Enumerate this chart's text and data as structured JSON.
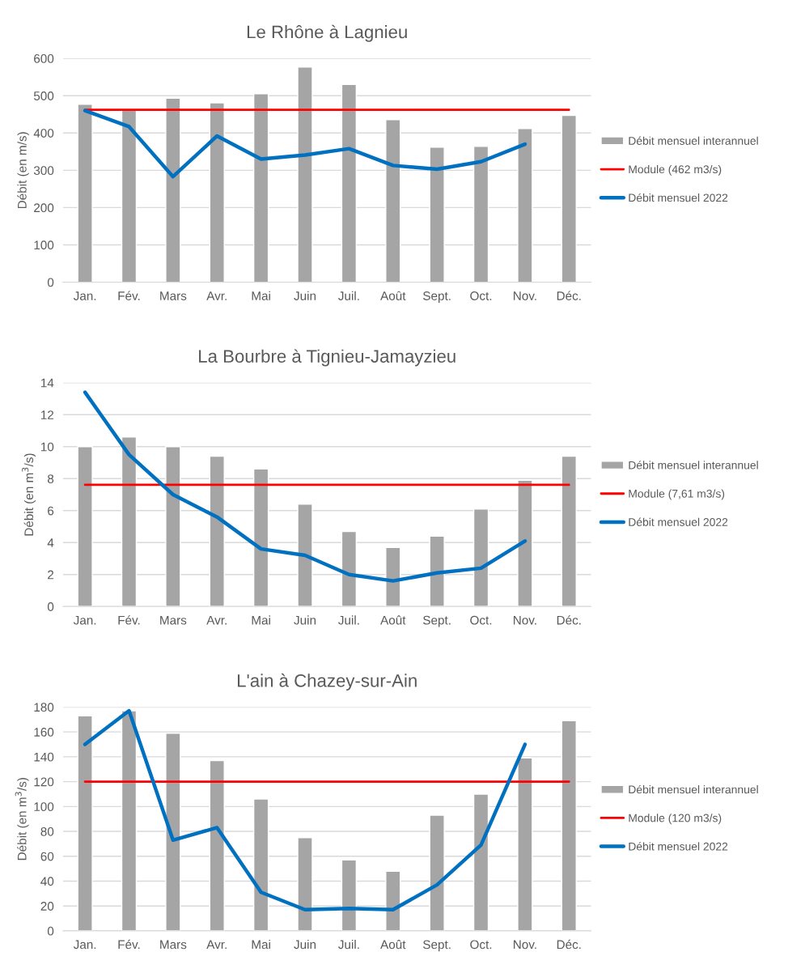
{
  "chart_data": [
    {
      "type": "bar",
      "title": "Le Rhône à Lagnieu",
      "ylabel": "Débit (en m/s)",
      "categories": [
        "Jan.",
        "Fév.",
        "Mars",
        "Avr.",
        "Mai",
        "Juin",
        "Juil.",
        "Août",
        "Sept.",
        "Oct.",
        "Nov.",
        "Déc."
      ],
      "ylim": [
        0,
        600
      ],
      "yticks": [
        0,
        100,
        200,
        300,
        400,
        500,
        600
      ],
      "grid": "y",
      "legend": "right",
      "series": [
        {
          "name": "Débit mensuel interannuel",
          "color": "#a5a5a5",
          "values": [
            477,
            462,
            493,
            481,
            505,
            577,
            530,
            436,
            362,
            364,
            412,
            447
          ]
        },
        {
          "name": "Module (462 m3/s)",
          "type": "line",
          "color": "#ff0000",
          "values": [
            462,
            462,
            462,
            462,
            462,
            462,
            462,
            462,
            462,
            462,
            462,
            462
          ]
        },
        {
          "name": "Débit mensuel 2022",
          "type": "line",
          "color": "#0070c0",
          "values": [
            460,
            417,
            283,
            392,
            330,
            341,
            358,
            313,
            303,
            323,
            370,
            null
          ]
        }
      ]
    },
    {
      "type": "bar",
      "title": "La Bourbre à Tignieu-Jamayzieu",
      "ylabel": "Débit (en m$^{3}$/s)",
      "categories": [
        "Jan.",
        "Fév.",
        "Mars",
        "Avr.",
        "Mai",
        "Juin",
        "Juil.",
        "Août",
        "Sept.",
        "Oct.",
        "Nov.",
        "Déc."
      ],
      "ylim": [
        0,
        14
      ],
      "yticks": [
        0,
        2,
        4,
        6,
        8,
        10,
        12,
        14
      ],
      "grid": "y",
      "legend": "right",
      "series": [
        {
          "name": "Débit mensuel interannuel",
          "color": "#a5a5a5",
          "values": [
            10.0,
            10.6,
            10.0,
            9.4,
            8.6,
            6.4,
            4.7,
            3.7,
            4.4,
            6.1,
            7.9,
            9.4
          ]
        },
        {
          "name": "Module (7,61 m3/s)",
          "type": "line",
          "color": "#ff0000",
          "values": [
            7.61,
            7.61,
            7.61,
            7.61,
            7.61,
            7.61,
            7.61,
            7.61,
            7.61,
            7.61,
            7.61,
            7.61
          ]
        },
        {
          "name": "Débit mensuel 2022",
          "type": "line",
          "color": "#0070c0",
          "values": [
            13.4,
            9.5,
            7.0,
            5.6,
            3.6,
            3.2,
            2.0,
            1.6,
            2.1,
            2.4,
            4.1,
            null
          ]
        }
      ]
    },
    {
      "type": "bar",
      "title": "L'ain à Chazey-sur-Ain",
      "ylabel": "Débit (en m$^{3}$/s)",
      "categories": [
        "Jan.",
        "Fév.",
        "Mars",
        "Avr.",
        "Mai",
        "Juin",
        "Juil.",
        "Août",
        "Sept.",
        "Oct.",
        "Nov.",
        "Déc."
      ],
      "ylim": [
        0,
        180
      ],
      "yticks": [
        0,
        20,
        40,
        60,
        80,
        100,
        120,
        140,
        160,
        180
      ],
      "grid": "y",
      "legend": "right",
      "series": [
        {
          "name": "Débit mensuel interannuel",
          "color": "#a5a5a5",
          "values": [
            173,
            177,
            159,
            137,
            106,
            75,
            57,
            48,
            93,
            110,
            139,
            169
          ]
        },
        {
          "name": "Module (120 m3/s)",
          "type": "line",
          "color": "#ff0000",
          "values": [
            120,
            120,
            120,
            120,
            120,
            120,
            120,
            120,
            120,
            120,
            120,
            120
          ]
        },
        {
          "name": "Débit mensuel 2022",
          "type": "line",
          "color": "#0070c0",
          "values": [
            150,
            177,
            73,
            83,
            31,
            17,
            18,
            17,
            37,
            69,
            150,
            null
          ]
        }
      ]
    }
  ]
}
